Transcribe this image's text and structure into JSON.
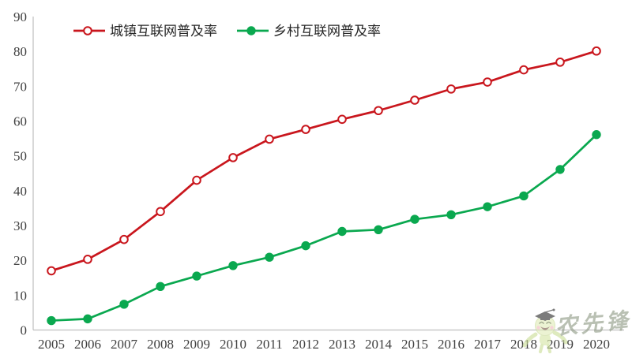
{
  "chart_data": {
    "type": "line",
    "title": "",
    "xlabel": "",
    "ylabel": "",
    "x": [
      "2005",
      "2006",
      "2007",
      "2008",
      "2009",
      "2010",
      "2011",
      "2012",
      "2013",
      "2014",
      "2015",
      "2016",
      "2017",
      "2018",
      "2019",
      "2020"
    ],
    "series": [
      {
        "name": "城镇互联网普及率",
        "color": "#C9161D",
        "marker": "open-circle",
        "values": [
          17.0,
          20.3,
          26.0,
          34.0,
          43.0,
          49.5,
          54.8,
          57.6,
          60.5,
          63.0,
          66.0,
          69.2,
          71.2,
          74.7,
          76.9,
          80.1
        ]
      },
      {
        "name": "乡村互联网普及率",
        "color": "#0AA84F",
        "marker": "filled-circle",
        "values": [
          2.7,
          3.2,
          7.4,
          12.5,
          15.5,
          18.5,
          20.9,
          24.2,
          28.3,
          28.8,
          31.8,
          33.1,
          35.4,
          38.5,
          46.1,
          56.1
        ]
      }
    ],
    "ylim": [
      0,
      90
    ],
    "ytick_step": 10,
    "yticks": [
      0,
      10,
      20,
      30,
      40,
      50,
      60,
      70,
      80,
      90
    ],
    "grid": false,
    "legend_position": "top-left",
    "axis_color": "#BFBFBF",
    "tick_label_color": "#3F3F3F",
    "legend_text_color": "#262626"
  },
  "watermark": {
    "text": "农先锋",
    "text_color": "#8F9B85",
    "mascot": "graduate-smiley",
    "mascot_face_color": "#E2ECB9",
    "mascot_cap_color": "#2B2B2B"
  }
}
